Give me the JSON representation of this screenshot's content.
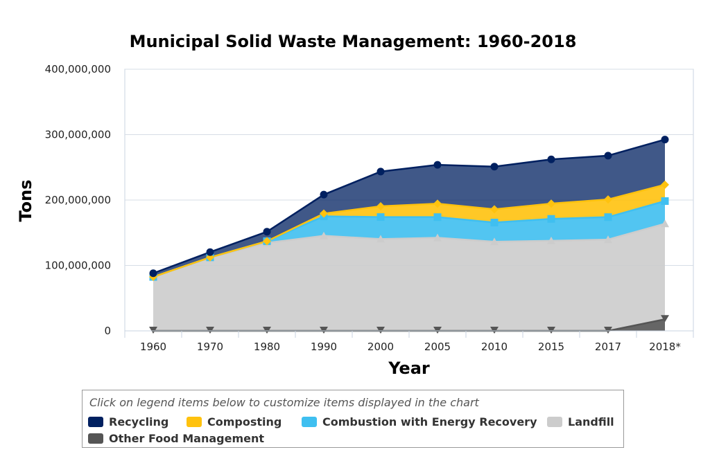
{
  "chart_data": {
    "type": "area",
    "stacked": true,
    "title": "Municipal Solid Waste Management: 1960-2018",
    "xlabel": "Year",
    "ylabel": "Tons",
    "categories": [
      "1960",
      "1970",
      "1980",
      "1990",
      "2000",
      "2005",
      "2010",
      "2015",
      "2017",
      "2018*"
    ],
    "ylim": [
      0,
      400000000
    ],
    "yticks": [
      "0",
      "100,000,000",
      "200,000,000",
      "300,000,000",
      "400,000,000"
    ],
    "grid": true,
    "legend_placement": "bottom",
    "series": [
      {
        "name": "Other Food Management",
        "color": "#555555",
        "marker": "triangle-down",
        "values": [
          0,
          0,
          0,
          0,
          0,
          0,
          0,
          0,
          0,
          17700000
        ]
      },
      {
        "name": "Landfill",
        "color": "#cccccc",
        "marker": "triangle",
        "values": [
          82500000,
          112000000,
          134400000,
          145300000,
          140300000,
          142300000,
          136300000,
          137700000,
          139600000,
          146100000
        ]
      },
      {
        "name": "Combustion with Energy Recovery",
        "color": "#3fbff0",
        "marker": "square",
        "values": [
          0,
          400000,
          2700000,
          29800000,
          33700000,
          31600000,
          29300000,
          33500000,
          34300000,
          34600000
        ]
      },
      {
        "name": "Composting",
        "color": "#ffc20e",
        "marker": "diamond",
        "values": [
          0,
          0,
          0,
          4200000,
          16500000,
          20600000,
          20200000,
          23400000,
          27000000,
          25000000
        ]
      },
      {
        "name": "Recycling",
        "color": "#002060",
        "marker": "circle",
        "values": [
          5600000,
          8000000,
          14500000,
          29000000,
          53000000,
          59300000,
          65300000,
          67600000,
          67000000,
          69100000
        ]
      }
    ],
    "legend_order": [
      "Recycling",
      "Composting",
      "Combustion with Energy Recovery",
      "Landfill",
      "Other Food Management"
    ]
  },
  "legend": {
    "hint": "Click on legend items below to customize items displayed in the chart"
  }
}
